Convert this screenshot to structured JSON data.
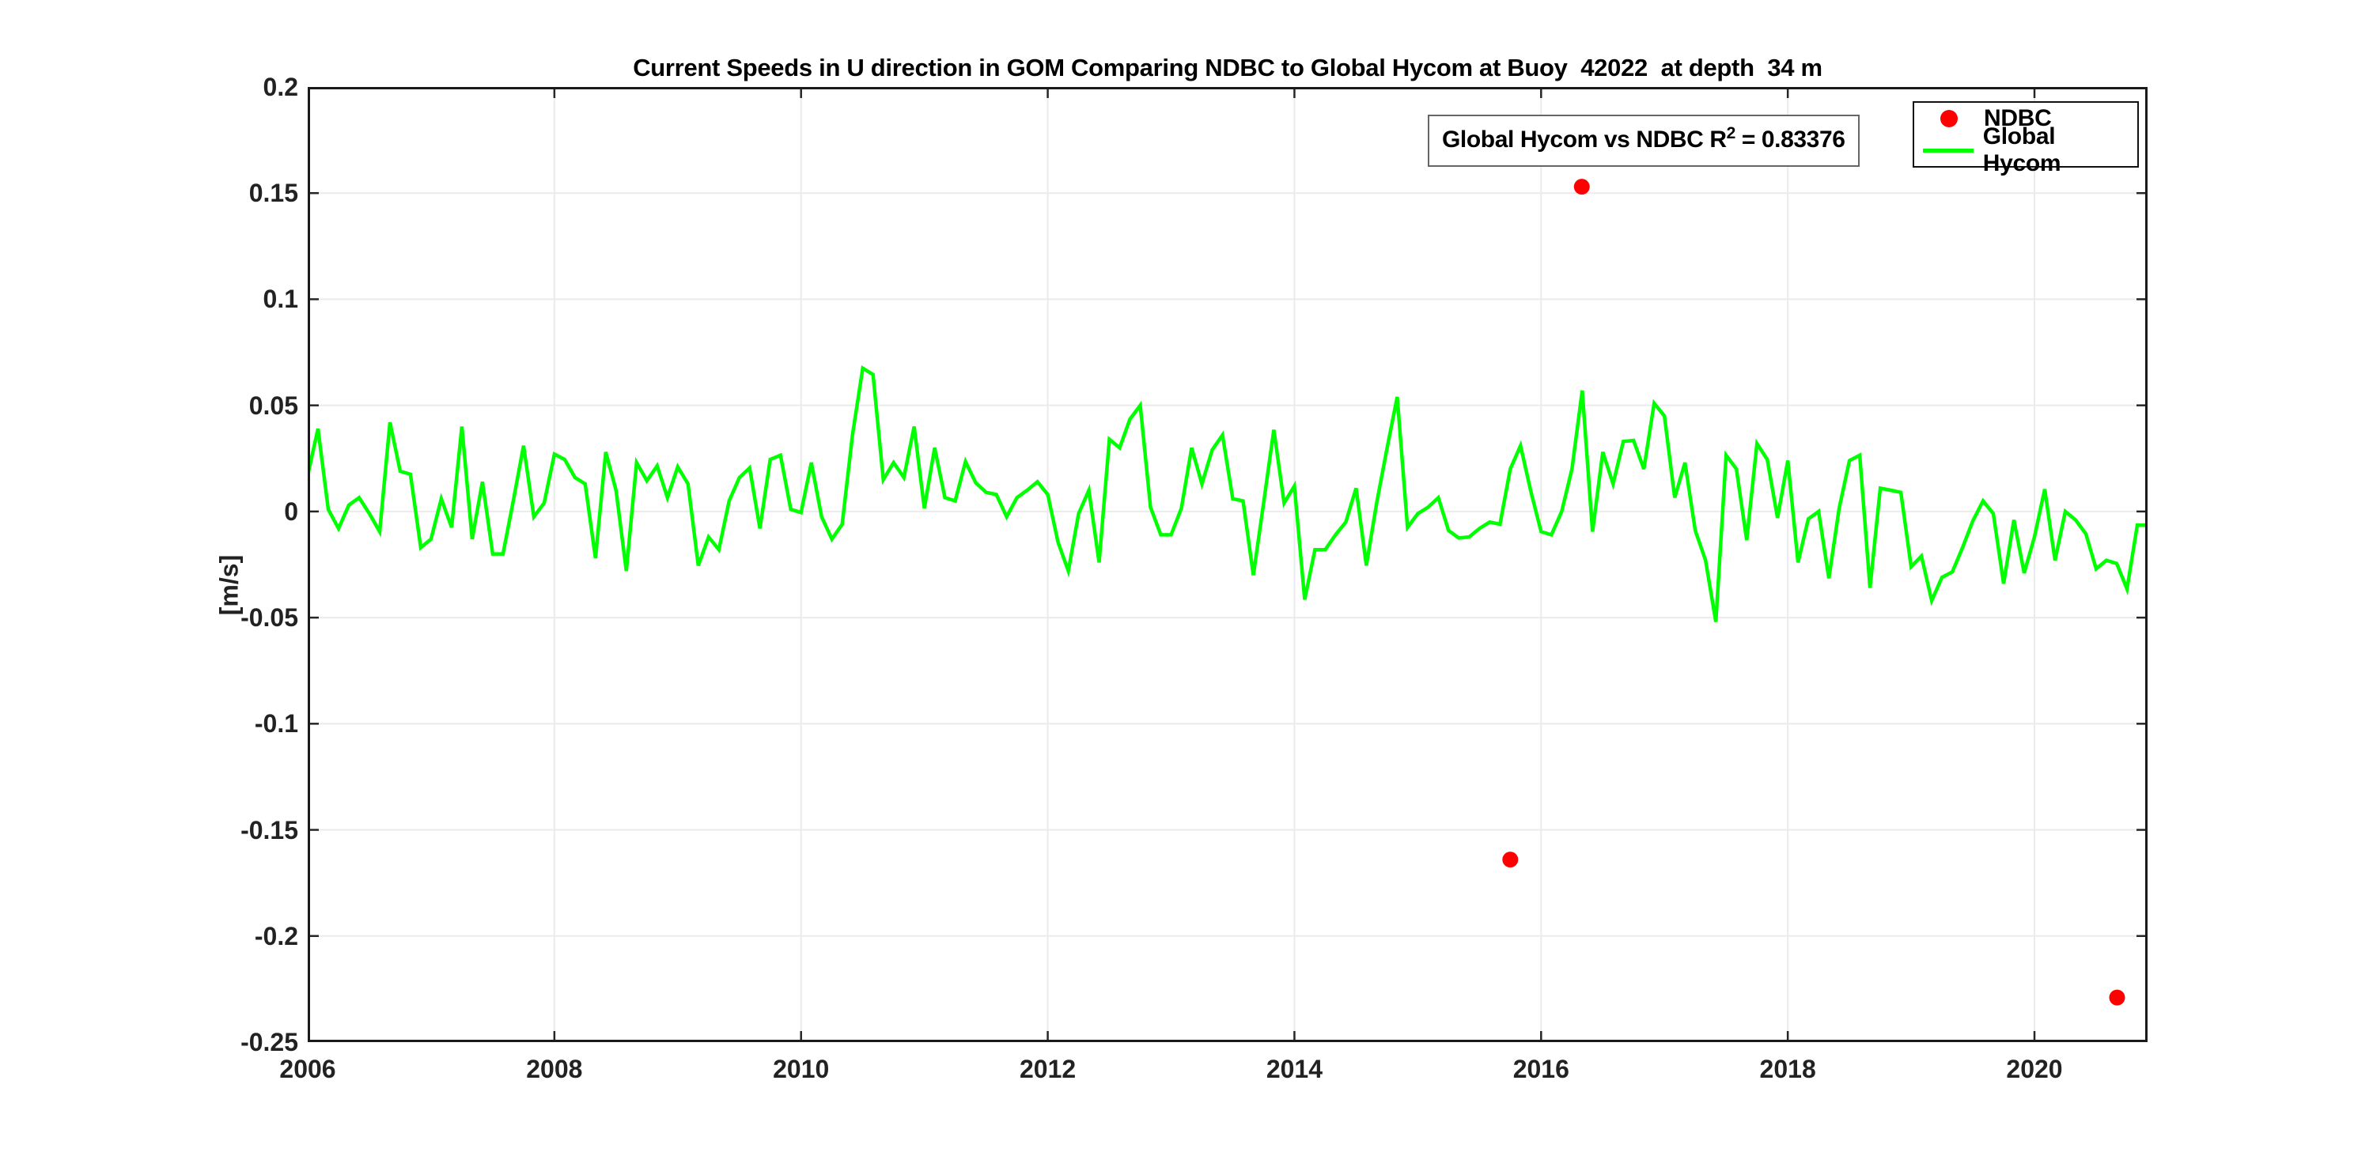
{
  "figure": {
    "title": "Current Speeds in U direction in GOM Comparing NDBC to Global Hycom at Buoy  42022  at depth  34 m",
    "ylabel": "[m/s]",
    "annotation": {
      "prefix": "Global Hycom vs NDBC R",
      "sup": "2",
      "suffix": " = 0.83376"
    },
    "legend": {
      "ndbc_label": "NDBC",
      "hycom_label": "Global Hycom"
    },
    "colors": {
      "ndbc": "#ff0000",
      "hycom": "#00ff00",
      "grid": "#ebebeb",
      "axis": "#262626",
      "box": "#1a1a1a",
      "annotation_border": "#666666"
    }
  },
  "chart_data": {
    "type": "line",
    "title": "Current Speeds in U direction in GOM Comparing NDBC to Global Hycom at Buoy  42022  at depth  34 m",
    "xlabel": "",
    "ylabel": "[m/s]",
    "xlim": [
      2006,
      2020.917
    ],
    "ylim": [
      -0.25,
      0.2
    ],
    "grid": true,
    "legend_position": "top-right",
    "annotation_text": "Global Hycom vs NDBC R^2 = 0.83376",
    "xticks": [
      {
        "v": 2006,
        "label": "2006"
      },
      {
        "v": 2008,
        "label": "2008"
      },
      {
        "v": 2010,
        "label": "2010"
      },
      {
        "v": 2012,
        "label": "2012"
      },
      {
        "v": 2014,
        "label": "2014"
      },
      {
        "v": 2016,
        "label": "2016"
      },
      {
        "v": 2018,
        "label": "2018"
      },
      {
        "v": 2020,
        "label": "2020"
      }
    ],
    "yticks": [
      {
        "v": 0.2,
        "label": "0.2"
      },
      {
        "v": 0.15,
        "label": "0.15"
      },
      {
        "v": 0.1,
        "label": "0.1"
      },
      {
        "v": 0.05,
        "label": "0.05"
      },
      {
        "v": 0,
        "label": "0"
      },
      {
        "v": -0.05,
        "label": "-0.05"
      },
      {
        "v": -0.1,
        "label": "-0.1"
      },
      {
        "v": -0.15,
        "label": "-0.15"
      },
      {
        "v": -0.2,
        "label": "-0.2"
      },
      {
        "v": -0.25,
        "label": "-0.25"
      }
    ],
    "series": [
      {
        "name": "NDBC",
        "type": "scatter",
        "color": "#ff0000",
        "marker_radius": 10,
        "points": [
          [
            2015.75,
            -0.164
          ],
          [
            2016.33,
            0.153
          ],
          [
            2020.67,
            -0.229
          ]
        ]
      },
      {
        "name": "Global Hycom",
        "type": "line",
        "color": "#00ff00",
        "line_width": 4.5,
        "x_start": 2006.0,
        "x_step": 0.0833333,
        "values": [
          0.017,
          0.039,
          0.001,
          -0.008,
          0.003,
          0.0065,
          -0.001,
          -0.0095,
          0.042,
          0.019,
          0.0175,
          -0.017,
          -0.013,
          0.006,
          -0.0075,
          0.04,
          -0.013,
          0.014,
          -0.02,
          -0.02,
          0.005,
          0.031,
          -0.0025,
          0.004,
          0.027,
          0.0245,
          0.016,
          0.013,
          -0.022,
          0.028,
          0.01,
          -0.028,
          0.023,
          0.0145,
          0.0215,
          0.0065,
          0.021,
          0.013,
          -0.0255,
          -0.012,
          -0.018,
          0.005,
          0.016,
          0.0205,
          -0.008,
          0.0245,
          0.0265,
          0.001,
          -0.0005,
          0.023,
          -0.0025,
          -0.013,
          -0.006,
          0.036,
          0.0675,
          0.0645,
          0.015,
          0.023,
          0.016,
          0.04,
          0.0015,
          0.03,
          0.0065,
          0.005,
          0.0235,
          0.0135,
          0.009,
          0.008,
          -0.0025,
          0.0065,
          0.01,
          0.014,
          0.008,
          -0.0145,
          -0.028,
          -0.001,
          0.01,
          -0.024,
          0.034,
          0.03,
          0.0435,
          0.05,
          0.002,
          -0.011,
          -0.011,
          0.0015,
          0.03,
          0.013,
          0.029,
          0.036,
          0.006,
          0.005,
          -0.03,
          0.004,
          0.0385,
          0.004,
          0.012,
          -0.0415,
          -0.018,
          -0.018,
          -0.011,
          -0.005,
          0.011,
          -0.0255,
          0.004,
          0.0295,
          0.054,
          -0.0075,
          -0.001,
          0.002,
          0.0065,
          -0.009,
          -0.0125,
          -0.012,
          -0.008,
          -0.005,
          -0.006,
          0.02,
          0.031,
          0.0095,
          -0.0095,
          -0.011,
          0.0,
          0.02,
          0.057,
          -0.0095,
          0.028,
          0.013,
          0.033,
          0.0335,
          0.02,
          0.051,
          0.045,
          0.0065,
          0.023,
          -0.009,
          -0.023,
          -0.052,
          0.0265,
          0.02,
          -0.0135,
          0.032,
          0.0245,
          -0.003,
          0.024,
          -0.024,
          -0.0035,
          0.0,
          -0.0315,
          0.0015,
          0.024,
          0.0265,
          -0.036,
          0.011,
          0.01,
          0.009,
          -0.026,
          -0.021,
          -0.042,
          -0.031,
          -0.0285,
          -0.017,
          -0.0045,
          0.005,
          -0.001,
          -0.034,
          -0.004,
          -0.029,
          -0.012,
          0.0105,
          -0.023,
          0.0,
          -0.004,
          -0.0105,
          -0.027,
          -0.023,
          -0.0245,
          -0.0365,
          -0.0065,
          -0.0065
        ]
      }
    ]
  }
}
